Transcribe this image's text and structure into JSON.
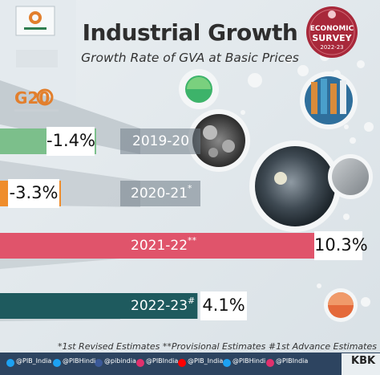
{
  "title": "Industrial Growth",
  "subtitle": "Growth Rate of GVA at Basic Prices",
  "badge": {
    "line1": "ECONOMIC",
    "line2": "SURVEY",
    "line3": "2022-23",
    "color": "#a8283a"
  },
  "footnote": "*1st Revised Estimates **Provisional Estimates #1st Advance Estimates",
  "credit": "KBK",
  "social_handles": [
    "@PIB_India",
    "@PIBHindi",
    "@pibindia",
    "@PIBIndia",
    "@PIB_India",
    "@PIBHindi",
    "@PIBIndia"
  ],
  "logos": {
    "g20": "G20"
  },
  "chart_data": {
    "type": "bar",
    "orientation": "horizontal",
    "categories": [
      "2019-20",
      "2020-21",
      "2021-22",
      "2022-23"
    ],
    "markers": [
      "",
      "*",
      "**",
      "#"
    ],
    "values": [
      -1.4,
      -3.3,
      10.3,
      4.1
    ],
    "value_labels": [
      "-1.4%",
      "-3.3%",
      "10.3%",
      "4.1%"
    ],
    "colors": [
      "#7cbf8b",
      "#ef8d2c",
      "#e0546b",
      "#1e5a5e"
    ],
    "title": "Industrial Growth",
    "subtitle": "Growth Rate of GVA at Basic Prices"
  }
}
